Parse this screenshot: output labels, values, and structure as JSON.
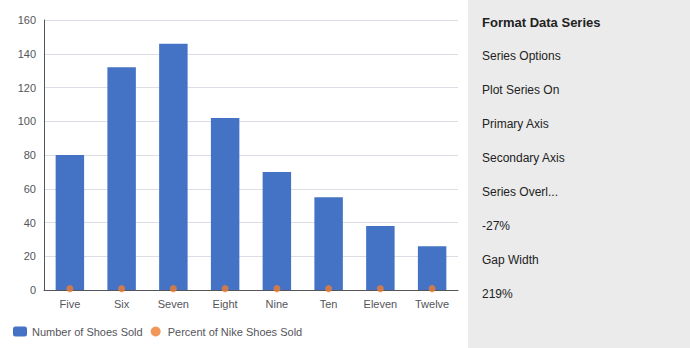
{
  "chart_data": {
    "type": "bar",
    "categories": [
      "Five",
      "Six",
      "Seven",
      "Eight",
      "Nine",
      "Ten",
      "Eleven",
      "Twelve"
    ],
    "series": [
      {
        "name": "Number of Shoes Sold",
        "type": "bar",
        "color": "#4472C4",
        "values": [
          80,
          132,
          146,
          102,
          70,
          55,
          38,
          26
        ]
      },
      {
        "name": "Percent of Nike Shoes Sold",
        "type": "scatter",
        "color": "#ED7D31",
        "values": [
          0.8,
          0.8,
          0.8,
          0.8,
          0.8,
          0.8,
          0.8,
          0.8
        ]
      }
    ],
    "ylim": [
      0,
      160
    ],
    "yticks": [
      0,
      20,
      40,
      60,
      80,
      100,
      120,
      140,
      160
    ],
    "grid": true,
    "legend": "bottom",
    "annotations": [
      "Format Data Series",
      "Series Options",
      "Plot Series On",
      "Primary Axis",
      "Secondary Axis",
      "Series Overl...",
      "-27%",
      "Gap Width",
      "219%"
    ]
  }
}
